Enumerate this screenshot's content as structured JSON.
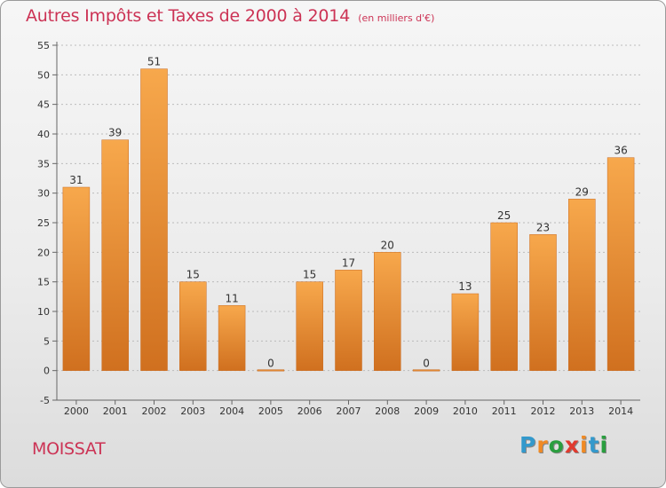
{
  "title": "Autres Impôts et Taxes de 2000 à 2014",
  "subtitle": "(en milliers d'€)",
  "commune": "MOISSAT",
  "logo": {
    "letters": [
      "P",
      "r",
      "o",
      "x",
      "i",
      "t",
      "i"
    ],
    "colors": [
      "#3399cc",
      "#f08a24",
      "#2a9e3f",
      "#e03a2e",
      "#f08a24",
      "#3399cc",
      "#2a9e3f"
    ]
  },
  "colors": {
    "title": "#cc3355",
    "bar_light": "#f7a84c",
    "bar_dark": "#d0701f",
    "grid": "#bbbbbb"
  },
  "chart_data": {
    "type": "bar",
    "title": "Autres Impôts et Taxes de 2000 à 2014",
    "subtitle": "(en milliers d'€)",
    "categories": [
      "2000",
      "2001",
      "2002",
      "2003",
      "2004",
      "2005",
      "2006",
      "2007",
      "2008",
      "2009",
      "2010",
      "2011",
      "2012",
      "2013",
      "2014"
    ],
    "values": [
      31,
      39,
      51,
      15,
      11,
      0,
      15,
      17,
      20,
      0,
      13,
      25,
      23,
      29,
      36
    ],
    "ylim": [
      -5,
      55
    ],
    "yticks": [
      -5,
      0,
      5,
      10,
      15,
      20,
      25,
      30,
      35,
      40,
      45,
      50,
      55
    ],
    "grid": true
  }
}
